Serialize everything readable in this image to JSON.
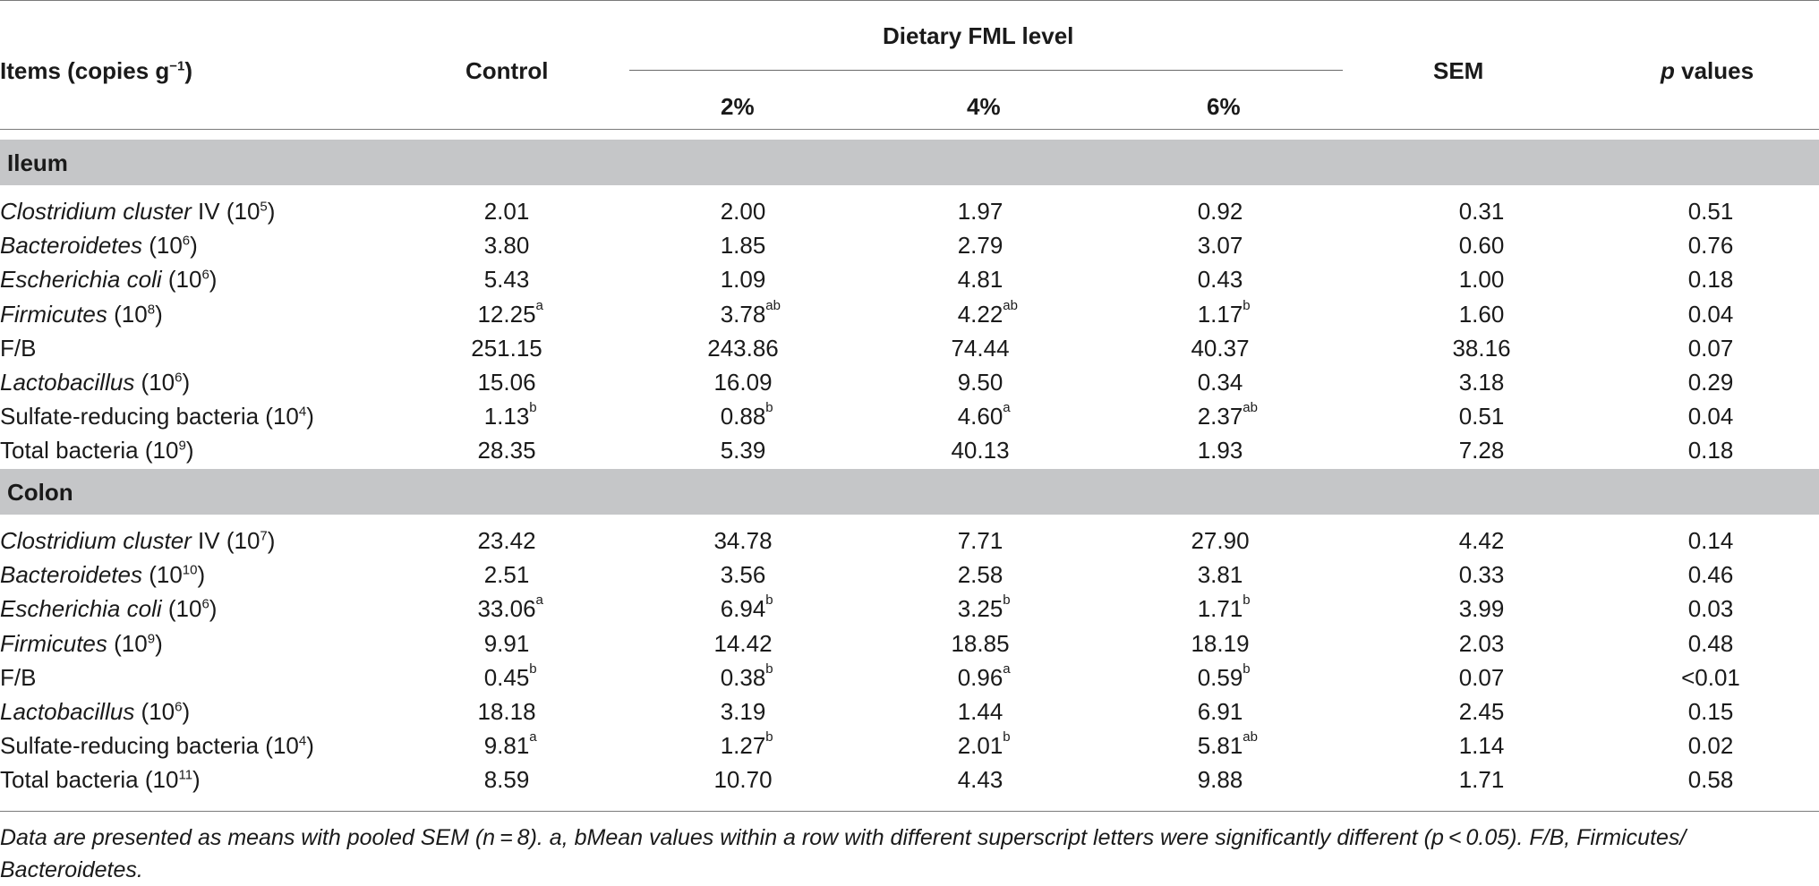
{
  "header": {
    "items_label": "Items (copies g",
    "items_sup": "−1",
    "items_close": ")",
    "control": "Control",
    "group": "Dietary FML level",
    "levels": [
      "2%",
      "4%",
      "6%"
    ],
    "sem": "SEM",
    "p_italic": "p",
    "p_rest": " values"
  },
  "sections": [
    {
      "title": "Ileum",
      "rows": [
        {
          "name": "Clostridium cluster",
          "name_tail": " IV (10",
          "exp": "5",
          "close": ")",
          "italic": true,
          "vals": [
            [
              "2.01",
              ""
            ],
            [
              "2.00",
              ""
            ],
            [
              "1.97",
              ""
            ],
            [
              "0.92",
              ""
            ]
          ],
          "sem": "0.31",
          "p": "0.51"
        },
        {
          "name": "Bacteroidetes",
          "name_tail": " (10",
          "exp": "6",
          "close": ")",
          "italic": true,
          "vals": [
            [
              "3.80",
              ""
            ],
            [
              "1.85",
              ""
            ],
            [
              "2.79",
              ""
            ],
            [
              "3.07",
              ""
            ]
          ],
          "sem": "0.60",
          "p": "0.76"
        },
        {
          "name": "Escherichia coli",
          "name_tail": " (10",
          "exp": "6",
          "close": ")",
          "italic": true,
          "vals": [
            [
              "5.43",
              ""
            ],
            [
              "1.09",
              ""
            ],
            [
              "4.81",
              ""
            ],
            [
              "0.43",
              ""
            ]
          ],
          "sem": "1.00",
          "p": "0.18"
        },
        {
          "name": "Firmicutes",
          "name_tail": " (10",
          "exp": "8",
          "close": ")",
          "italic": true,
          "vals": [
            [
              "12.25",
              "a"
            ],
            [
              "3.78",
              "ab"
            ],
            [
              "4.22",
              "ab"
            ],
            [
              "1.17",
              "b"
            ]
          ],
          "sem": "1.60",
          "p": "0.04"
        },
        {
          "name": "F/B",
          "name_tail": "",
          "exp": "",
          "close": "",
          "italic": false,
          "vals": [
            [
              "251.15",
              ""
            ],
            [
              "243.86",
              ""
            ],
            [
              "74.44",
              ""
            ],
            [
              "40.37",
              ""
            ]
          ],
          "sem": "38.16",
          "p": "0.07"
        },
        {
          "name": "Lactobacillus",
          "name_tail": " (10",
          "exp": "6",
          "close": ")",
          "italic": true,
          "vals": [
            [
              "15.06",
              ""
            ],
            [
              "16.09",
              ""
            ],
            [
              "9.50",
              ""
            ],
            [
              "0.34",
              ""
            ]
          ],
          "sem": "3.18",
          "p": "0.29"
        },
        {
          "name": "Sulfate-reducing bacteria",
          "name_tail": " (10",
          "exp": "4",
          "close": ")",
          "italic": false,
          "vals": [
            [
              "1.13",
              "b"
            ],
            [
              "0.88",
              "b"
            ],
            [
              "4.60",
              "a"
            ],
            [
              "2.37",
              "ab"
            ]
          ],
          "sem": "0.51",
          "p": "0.04"
        },
        {
          "name": "Total bacteria",
          "name_tail": " (10",
          "exp": "9",
          "close": ")",
          "italic": false,
          "vals": [
            [
              "28.35",
              ""
            ],
            [
              "5.39",
              ""
            ],
            [
              "40.13",
              ""
            ],
            [
              "1.93",
              ""
            ]
          ],
          "sem": "7.28",
          "p": "0.18"
        }
      ]
    },
    {
      "title": "Colon",
      "rows": [
        {
          "name": "Clostridium cluster",
          "name_tail": " IV (10",
          "exp": "7",
          "close": ")",
          "italic": true,
          "vals": [
            [
              "23.42",
              ""
            ],
            [
              "34.78",
              ""
            ],
            [
              "7.71",
              ""
            ],
            [
              "27.90",
              ""
            ]
          ],
          "sem": "4.42",
          "p": "0.14"
        },
        {
          "name": "Bacteroidetes",
          "name_tail": " (10",
          "exp": "10",
          "close": ")",
          "italic": true,
          "vals": [
            [
              "2.51",
              ""
            ],
            [
              "3.56",
              ""
            ],
            [
              "2.58",
              ""
            ],
            [
              "3.81",
              ""
            ]
          ],
          "sem": "0.33",
          "p": "0.46"
        },
        {
          "name": "Escherichia coli",
          "name_tail": " (10",
          "exp": "6",
          "close": ")",
          "italic": true,
          "vals": [
            [
              "33.06",
              "a"
            ],
            [
              "6.94",
              "b"
            ],
            [
              "3.25",
              "b"
            ],
            [
              "1.71",
              "b"
            ]
          ],
          "sem": "3.99",
          "p": "0.03"
        },
        {
          "name": "Firmicutes",
          "name_tail": " (10",
          "exp": "9",
          "close": ")",
          "italic": true,
          "vals": [
            [
              "9.91",
              ""
            ],
            [
              "14.42",
              ""
            ],
            [
              "18.85",
              ""
            ],
            [
              "18.19",
              ""
            ]
          ],
          "sem": "2.03",
          "p": "0.48"
        },
        {
          "name": "F/B",
          "name_tail": "",
          "exp": "",
          "close": "",
          "italic": false,
          "vals": [
            [
              "0.45",
              "b"
            ],
            [
              "0.38",
              "b"
            ],
            [
              "0.96",
              "a"
            ],
            [
              "0.59",
              "b"
            ]
          ],
          "sem": "0.07",
          "p": "<0.01"
        },
        {
          "name": "Lactobacillus",
          "name_tail": " (10",
          "exp": "6",
          "close": ")",
          "italic": true,
          "vals": [
            [
              "18.18",
              ""
            ],
            [
              "3.19",
              ""
            ],
            [
              "1.44",
              ""
            ],
            [
              "6.91",
              ""
            ]
          ],
          "sem": "2.45",
          "p": "0.15"
        },
        {
          "name": "Sulfate-reducing bacteria",
          "name_tail": " (10",
          "exp": "4",
          "close": ")",
          "italic": false,
          "vals": [
            [
              "9.81",
              "a"
            ],
            [
              "1.27",
              "b"
            ],
            [
              "2.01",
              "b"
            ],
            [
              "5.81",
              "ab"
            ]
          ],
          "sem": "1.14",
          "p": "0.02"
        },
        {
          "name": "Total bacteria",
          "name_tail": " (10",
          "exp": "11",
          "close": ")",
          "italic": false,
          "vals": [
            [
              "8.59",
              ""
            ],
            [
              "10.70",
              ""
            ],
            [
              "4.43",
              ""
            ],
            [
              "9.88",
              ""
            ]
          ],
          "sem": "1.71",
          "p": "0.58"
        }
      ]
    }
  ],
  "footnote": "Data are presented as means with pooled SEM (n = 8). a, bMean values within a row with different superscript letters were significantly different (p < 0.05). F/B, Firmicutes/ Bacteroidetes."
}
